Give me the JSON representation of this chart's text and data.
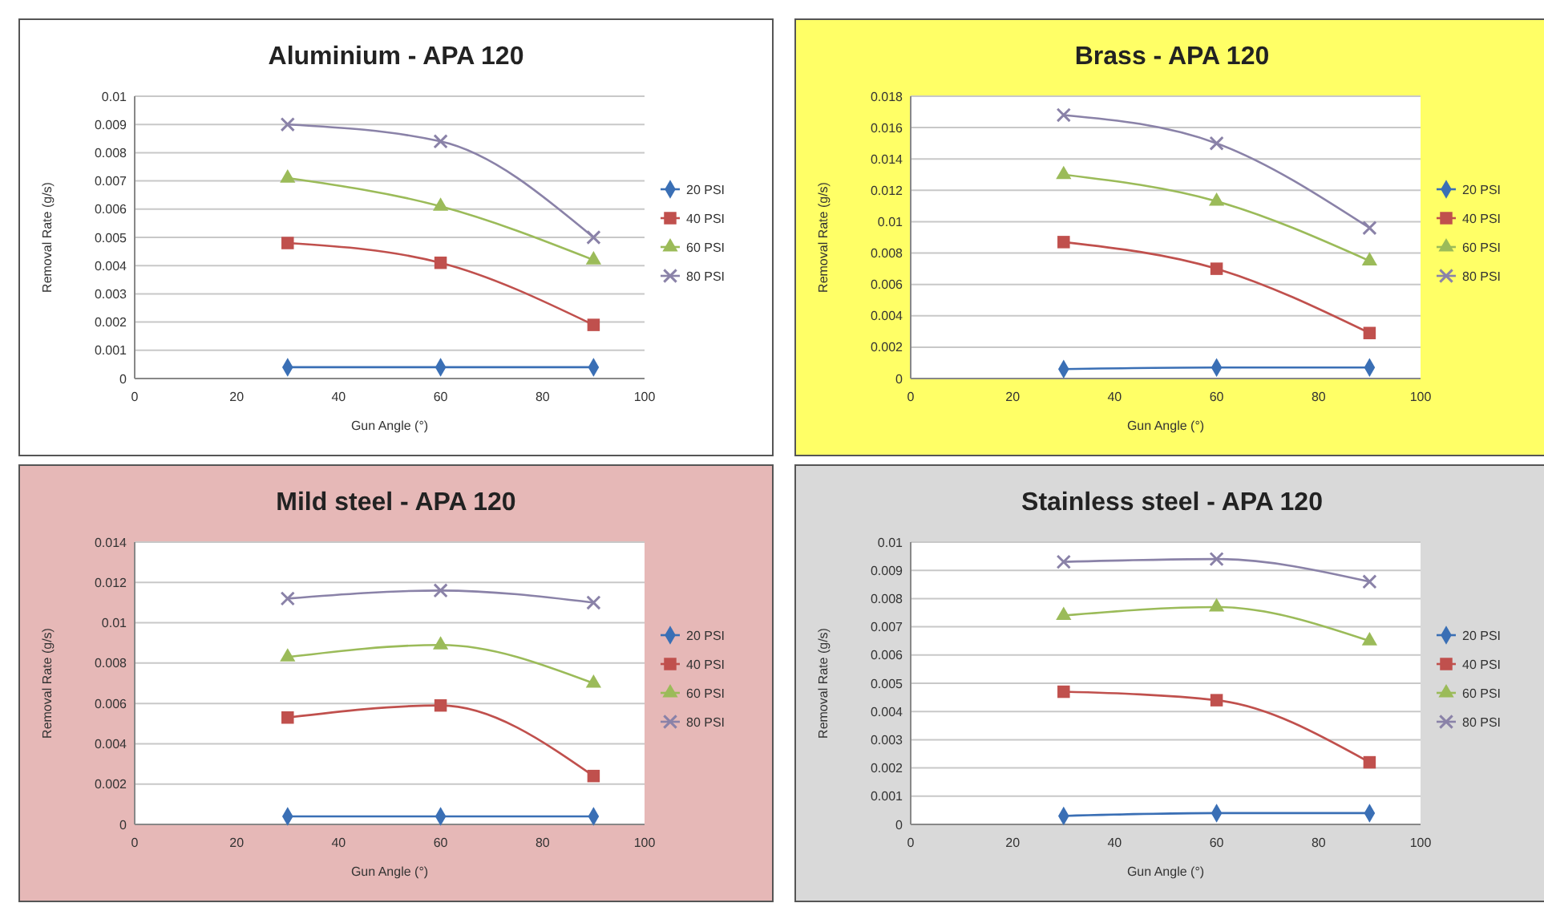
{
  "chart_data": [
    {
      "type": "line",
      "title": "Aluminium - APA 120",
      "xlabel": "Gun Angle (°)",
      "ylabel": "Removal Rate (g/s)",
      "x": [
        30,
        60,
        90
      ],
      "xlim": [
        0,
        100
      ],
      "xticks": [
        0,
        20,
        40,
        60,
        80,
        100
      ],
      "ylim": [
        0,
        0.01
      ],
      "yticks": [
        0,
        0.001,
        0.002,
        0.003,
        0.004,
        0.005,
        0.006,
        0.007,
        0.008,
        0.009,
        0.01
      ],
      "grid": "y",
      "legend": "right",
      "series": [
        {
          "name": "20 PSI",
          "color": "#3a6fb5",
          "marker": "diamond",
          "values": [
            0.0004,
            0.0004,
            0.0004
          ]
        },
        {
          "name": "40 PSI",
          "color": "#c0504d",
          "marker": "square",
          "values": [
            0.0048,
            0.0041,
            0.0019
          ]
        },
        {
          "name": "60 PSI",
          "color": "#9bbb59",
          "marker": "triangle",
          "values": [
            0.0071,
            0.0061,
            0.0042
          ]
        },
        {
          "name": "80 PSI",
          "color": "#8a82a8",
          "marker": "cross",
          "values": [
            0.009,
            0.0084,
            0.005
          ]
        }
      ]
    },
    {
      "type": "line",
      "title": "Brass - APA 120",
      "xlabel": "Gun Angle (°)",
      "ylabel": "Removal Rate (g/s)",
      "x": [
        30,
        60,
        90
      ],
      "xlim": [
        0,
        100
      ],
      "xticks": [
        0,
        20,
        40,
        60,
        80,
        100
      ],
      "ylim": [
        0,
        0.018
      ],
      "yticks": [
        0,
        0.002,
        0.004,
        0.006,
        0.008,
        0.01,
        0.012,
        0.014,
        0.016,
        0.018
      ],
      "grid": "y",
      "legend": "right",
      "series": [
        {
          "name": "20 PSI",
          "color": "#3a6fb5",
          "marker": "diamond",
          "values": [
            0.0006,
            0.0007,
            0.0007
          ]
        },
        {
          "name": "40 PSI",
          "color": "#c0504d",
          "marker": "square",
          "values": [
            0.0087,
            0.007,
            0.0029
          ]
        },
        {
          "name": "60 PSI",
          "color": "#9bbb59",
          "marker": "triangle",
          "values": [
            0.013,
            0.0113,
            0.0075
          ]
        },
        {
          "name": "80 PSI",
          "color": "#8a82a8",
          "marker": "cross",
          "values": [
            0.0168,
            0.015,
            0.0096
          ]
        }
      ]
    },
    {
      "type": "line",
      "title": "Mild steel - APA 120",
      "xlabel": "Gun Angle (°)",
      "ylabel": "Removal Rate (g/s)",
      "x": [
        30,
        60,
        90
      ],
      "xlim": [
        0,
        100
      ],
      "xticks": [
        0,
        20,
        40,
        60,
        80,
        100
      ],
      "ylim": [
        0,
        0.014
      ],
      "yticks": [
        0,
        0.002,
        0.004,
        0.006,
        0.008,
        0.01,
        0.012,
        0.014
      ],
      "grid": "y",
      "legend": "right",
      "series": [
        {
          "name": "20 PSI",
          "color": "#3a6fb5",
          "marker": "diamond",
          "values": [
            0.0004,
            0.0004,
            0.0004
          ]
        },
        {
          "name": "40 PSI",
          "color": "#c0504d",
          "marker": "square",
          "values": [
            0.0053,
            0.0059,
            0.0024
          ]
        },
        {
          "name": "60 PSI",
          "color": "#9bbb59",
          "marker": "triangle",
          "values": [
            0.0083,
            0.0089,
            0.007
          ]
        },
        {
          "name": "80 PSI",
          "color": "#8a82a8",
          "marker": "cross",
          "values": [
            0.0112,
            0.0116,
            0.011
          ]
        }
      ]
    },
    {
      "type": "line",
      "title": "Stainless steel - APA 120",
      "xlabel": "Gun Angle (°)",
      "ylabel": "Removal Rate (g/s)",
      "x": [
        30,
        60,
        90
      ],
      "xlim": [
        0,
        100
      ],
      "xticks": [
        0,
        20,
        40,
        60,
        80,
        100
      ],
      "ylim": [
        0,
        0.01
      ],
      "yticks": [
        0,
        0.001,
        0.002,
        0.003,
        0.004,
        0.005,
        0.006,
        0.007,
        0.008,
        0.009,
        0.01
      ],
      "grid": "y",
      "legend": "right",
      "series": [
        {
          "name": "20 PSI",
          "color": "#3a6fb5",
          "marker": "diamond",
          "values": [
            0.0003,
            0.0004,
            0.0004
          ]
        },
        {
          "name": "40 PSI",
          "color": "#c0504d",
          "marker": "square",
          "values": [
            0.0047,
            0.0044,
            0.0022
          ]
        },
        {
          "name": "60 PSI",
          "color": "#9bbb59",
          "marker": "triangle",
          "values": [
            0.0074,
            0.0077,
            0.0065
          ]
        },
        {
          "name": "80 PSI",
          "color": "#8a82a8",
          "marker": "cross",
          "values": [
            0.0093,
            0.0094,
            0.0086
          ]
        }
      ]
    }
  ]
}
